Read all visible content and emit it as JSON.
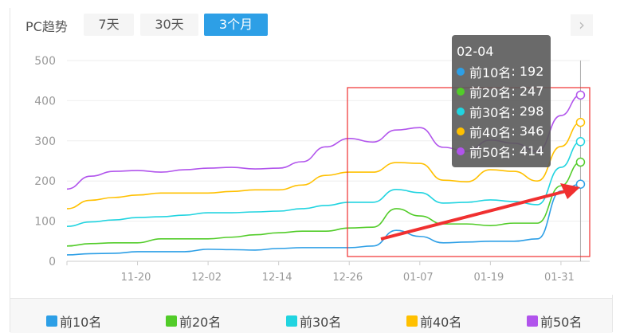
{
  "header": {
    "title": "PC趋势",
    "ranges": [
      "7天",
      "30天",
      "3个月"
    ],
    "active_range": "3个月",
    "next_icon": "chevron-right-icon"
  },
  "chart_data": {
    "type": "line",
    "x": [
      "11-08",
      "11-12",
      "11-16",
      "11-20",
      "11-24",
      "11-28",
      "12-02",
      "12-06",
      "12-10",
      "12-14",
      "12-18",
      "12-22",
      "12-26",
      "12-30",
      "01-03",
      "01-07",
      "01-11",
      "01-15",
      "01-19",
      "01-23",
      "01-27",
      "01-31",
      "02-04"
    ],
    "xticks": [
      "11-20",
      "12-02",
      "12-14",
      "12-26",
      "01-07",
      "01-19",
      "01-31"
    ],
    "yticks": [
      "0",
      "100",
      "200",
      "300",
      "400",
      "500"
    ],
    "ylim": [
      0,
      500
    ],
    "grid": true,
    "legend": "bottom",
    "series": [
      {
        "name": "前10名",
        "color": "#2d9fe6",
        "values": [
          16,
          19,
          20,
          24,
          24,
          24,
          30,
          29,
          28,
          32,
          34,
          34,
          34,
          38,
          77,
          62,
          46,
          48,
          50,
          50,
          56,
          175,
          192
        ]
      },
      {
        "name": "前20名",
        "color": "#52cc29",
        "values": [
          38,
          44,
          46,
          46,
          56,
          56,
          56,
          60,
          66,
          71,
          75,
          75,
          83,
          85,
          131,
          113,
          93,
          93,
          89,
          95,
          95,
          188,
          247
        ]
      },
      {
        "name": "前30名",
        "color": "#21d4e0",
        "values": [
          87,
          98,
          103,
          109,
          111,
          115,
          121,
          121,
          123,
          125,
          131,
          139,
          147,
          147,
          179,
          171,
          145,
          147,
          153,
          149,
          141,
          234,
          298
        ]
      },
      {
        "name": "前40名",
        "color": "#ffc000",
        "values": [
          131,
          152,
          159,
          165,
          170,
          170,
          170,
          174,
          178,
          178,
          190,
          214,
          222,
          222,
          246,
          244,
          202,
          198,
          228,
          224,
          200,
          286,
          346
        ]
      },
      {
        "name": "前50名",
        "color": "#b154ec",
        "values": [
          180,
          212,
          224,
          226,
          222,
          228,
          232,
          234,
          230,
          232,
          248,
          285,
          306,
          297,
          327,
          333,
          284,
          274,
          302,
          294,
          274,
          363,
          414
        ]
      }
    ],
    "tooltip": {
      "date": "02-04",
      "rows": [
        {
          "label": "前10名",
          "value": "192"
        },
        {
          "label": "前20名",
          "value": "247"
        },
        {
          "label": "前30名",
          "value": "298"
        },
        {
          "label": "前40名",
          "value": "346"
        },
        {
          "label": "前50名",
          "value": "414"
        }
      ]
    }
  }
}
